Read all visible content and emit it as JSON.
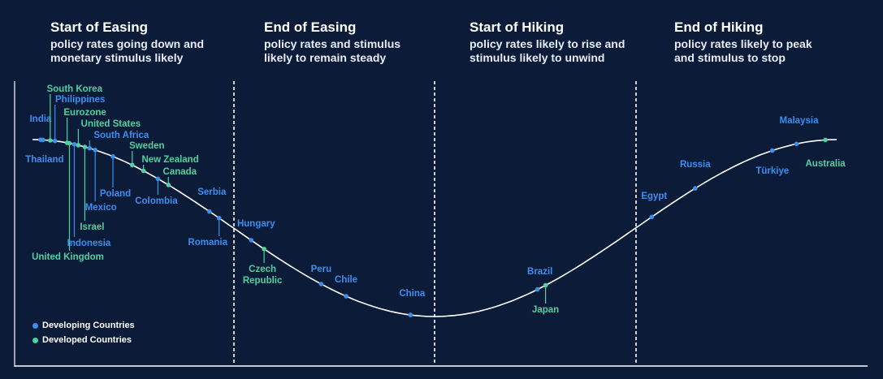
{
  "phases": [
    {
      "title": "Start of Easing",
      "desc": "policy rates going down and monetary stimulus likely"
    },
    {
      "title": "End of Easing",
      "desc": "policy rates and stimulus likely to remain steady"
    },
    {
      "title": "Start of Hiking",
      "desc": "policy rates likely to rise and stimulus likely to unwind"
    },
    {
      "title": "End of Hiking",
      "desc": "policy rates likely to peak and stimulus to stop"
    }
  ],
  "legend": [
    {
      "label": "Developing Countries",
      "color": "#3d8ef0"
    },
    {
      "label": "Developed Countries",
      "color": "#4fd1a0"
    }
  ],
  "colors": {
    "background": "#0c1b38",
    "developing": "#3d8ef0",
    "developed": "#4fd1a0",
    "curve": "#ffffff"
  },
  "chart_data": {
    "type": "scatter",
    "description_of_axes": "",
    "xlim": [
      0,
      1
    ],
    "phase_boundaries": [
      0.25,
      0.5,
      0.75
    ],
    "countries": [
      {
        "name": "India",
        "type": "developing",
        "x": 0.01
      },
      {
        "name": "Thailand",
        "type": "developing",
        "x": 0.013
      },
      {
        "name": "South Korea",
        "type": "developed",
        "x": 0.022
      },
      {
        "name": "Philippines",
        "type": "developing",
        "x": 0.028
      },
      {
        "name": "Eurozone",
        "type": "developed",
        "x": 0.043
      },
      {
        "name": "United Kingdom",
        "type": "developed",
        "x": 0.046
      },
      {
        "name": "Indonesia",
        "type": "developing",
        "x": 0.052
      },
      {
        "name": "United States",
        "type": "developed",
        "x": 0.057
      },
      {
        "name": "Israel",
        "type": "developed",
        "x": 0.065
      },
      {
        "name": "South Africa",
        "type": "developing",
        "x": 0.071
      },
      {
        "name": "Mexico",
        "type": "developing",
        "x": 0.078
      },
      {
        "name": "Poland",
        "type": "developing",
        "x": 0.1
      },
      {
        "name": "Sweden",
        "type": "developed",
        "x": 0.124
      },
      {
        "name": "New Zealand",
        "type": "developed",
        "x": 0.138
      },
      {
        "name": "Colombia",
        "type": "developing",
        "x": 0.156
      },
      {
        "name": "Canada",
        "type": "developed",
        "x": 0.169
      },
      {
        "name": "Serbia",
        "type": "developing",
        "x": 0.22
      },
      {
        "name": "Romania",
        "type": "developing",
        "x": 0.232
      },
      {
        "name": "Hungary",
        "type": "developing",
        "x": 0.272
      },
      {
        "name": "Czech Republic",
        "type": "developed",
        "x": 0.288
      },
      {
        "name": "Peru",
        "type": "developing",
        "x": 0.359
      },
      {
        "name": "Chile",
        "type": "developing",
        "x": 0.39
      },
      {
        "name": "China",
        "type": "developing",
        "x": 0.47
      },
      {
        "name": "Brazil",
        "type": "developing",
        "x": 0.628
      },
      {
        "name": "Japan",
        "type": "developed",
        "x": 0.638
      },
      {
        "name": "Egypt",
        "type": "developing",
        "x": 0.77
      },
      {
        "name": "Russia",
        "type": "developing",
        "x": 0.824
      },
      {
        "name": "Türkiye",
        "type": "developing",
        "x": 0.92
      },
      {
        "name": "Malaysia",
        "type": "developing",
        "x": 0.95
      },
      {
        "name": "Australia",
        "type": "developed",
        "x": 0.986
      }
    ]
  }
}
